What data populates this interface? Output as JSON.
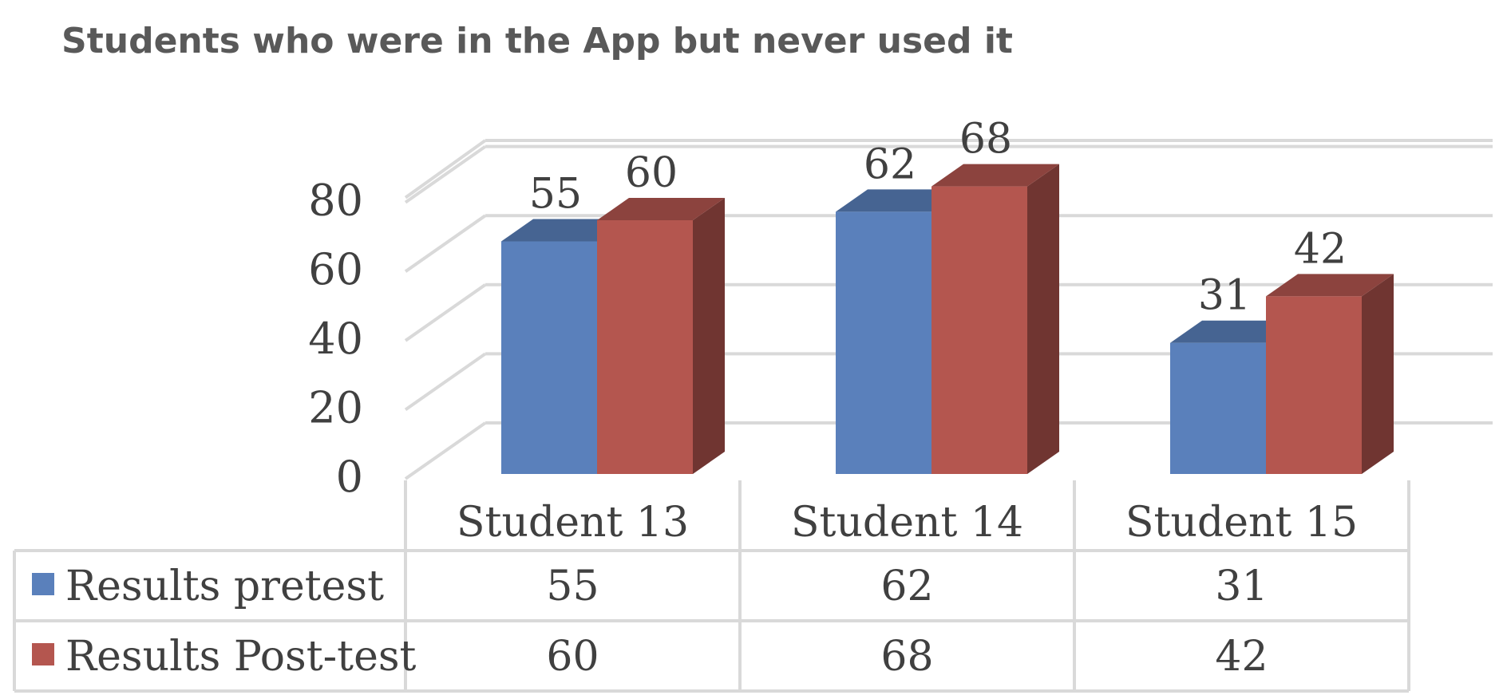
{
  "chart_data": {
    "type": "bar",
    "title": "Students who were in the App but never used it",
    "categories": [
      "Student 13",
      "Student 14",
      "Student 15"
    ],
    "series": [
      {
        "name": "Results pretest",
        "values": [
          55,
          62,
          31
        ],
        "color": "#5a80bb"
      },
      {
        "name": "Results Post-test",
        "values": [
          60,
          68,
          42
        ],
        "color": "#b4564f"
      }
    ],
    "y_ticks": [
      "0",
      "20",
      "40",
      "60",
      "80"
    ],
    "ylim": [
      0,
      80
    ],
    "grid": true,
    "style": "3d-clustered-column-with-data-table",
    "legend": "data-table"
  }
}
